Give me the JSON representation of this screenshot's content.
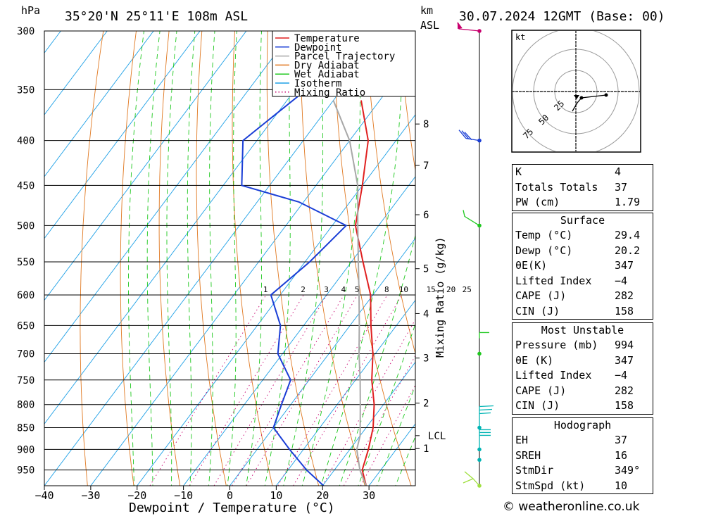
{
  "header": {
    "hpa_label": "hPa",
    "location": "35°20'N  25°11'E  108m  ASL",
    "km_label": "km",
    "asl_label": "ASL",
    "datetime": "30.07.2024  12GMT  (Base: 00)"
  },
  "chart_data": {
    "type": "line",
    "title": "35°20'N  25°11'E  108m  ASL",
    "xlabel": "Dewpoint / Temperature (°C)",
    "ylabel": "hPa",
    "right_axis_label": "Mixing Ratio (g/kg)",
    "x_ticks": [
      "−40",
      "−30",
      "−20",
      "−10",
      "0",
      "10",
      "20",
      "30"
    ],
    "x_tick_values": [
      -40,
      -30,
      -20,
      -10,
      0,
      10,
      20,
      30
    ],
    "pressure_levels": [
      300,
      350,
      400,
      450,
      500,
      550,
      600,
      650,
      700,
      750,
      800,
      850,
      900,
      950
    ],
    "pressure_labels": [
      "300",
      "350",
      "400",
      "450",
      "500",
      "550",
      "600",
      "650",
      "700",
      "750",
      "800",
      "850",
      "900",
      "950"
    ],
    "xlim": [
      -40,
      40
    ],
    "plim": [
      300,
      990
    ],
    "skew": "isotherms slope right (skew-T log-p)",
    "km_labels": [
      {
        "label": "8",
        "p": 383
      },
      {
        "label": "7",
        "p": 427
      },
      {
        "label": "6",
        "p": 486
      },
      {
        "label": "5",
        "p": 560
      },
      {
        "label": "4",
        "p": 630
      },
      {
        "label": "3",
        "p": 708
      },
      {
        "label": "2",
        "p": 797
      },
      {
        "label": "LCL",
        "p": 868
      },
      {
        "label": "1",
        "p": 898
      }
    ],
    "mixing_ratio_labels": [
      "1",
      "2",
      "3",
      "4",
      "5",
      "8",
      "10",
      "15",
      "20",
      "25"
    ],
    "mixing_ratio_values": [
      1,
      2,
      3,
      4,
      5,
      8,
      10,
      15,
      20,
      25
    ],
    "legend": [
      "Temperature",
      "Dewpoint",
      "Parcel Trajectory",
      "Dry Adiabat",
      "Wet Adiabat",
      "Isotherm",
      "Mixing Ratio"
    ],
    "legend_position": "top-right",
    "series": [
      {
        "name": "Temperature",
        "color": "#e02020",
        "p": [
          990,
          950,
          900,
          850,
          800,
          750,
          700,
          650,
          600,
          550,
          500,
          450,
          400,
          360
        ],
        "t": [
          29.4,
          26,
          24,
          21.5,
          18,
          13.5,
          9.5,
          4.5,
          -0.5,
          -7.5,
          -15,
          -20,
          -26,
          -34
        ]
      },
      {
        "name": "Dewpoint",
        "color": "#1a3ed6",
        "p": [
          990,
          950,
          900,
          850,
          800,
          750,
          700,
          650,
          600,
          550,
          500,
          470,
          450,
          400,
          345,
          300
        ],
        "t": [
          20.2,
          14,
          7,
          0,
          -2,
          -4,
          -11,
          -15,
          -22,
          -19,
          -17,
          -31,
          -46,
          -53,
          -47,
          -53
        ]
      },
      {
        "name": "Parcel Trajectory",
        "color": "#a8a8a8",
        "p": [
          990,
          950,
          900,
          868,
          800,
          750,
          700,
          650,
          600,
          550,
          500,
          450,
          400,
          360
        ],
        "t": [
          29.4,
          25.5,
          21.5,
          20,
          15,
          11,
          6.5,
          2,
          -3,
          -8.5,
          -14.5,
          -21,
          -30,
          -40
        ]
      }
    ],
    "hodograph": {
      "unit_label": "kt",
      "rings": [
        "25",
        "50",
        "75"
      ]
    },
    "indices": {
      "k_label": "K",
      "k": "4",
      "tt_label": "Totals Totals",
      "tt": "37",
      "pw_label": "PW (cm)",
      "pw": "1.79",
      "surface_title": "Surface",
      "sfc_temp_label": "Temp (°C)",
      "sfc_temp": "29.4",
      "sfc_dewp_label": "Dewp (°C)",
      "sfc_dewp": "20.2",
      "sfc_theta_label": "θE(K)",
      "sfc_theta": "347",
      "sfc_li_label": "Lifted Index",
      "sfc_li": "−4",
      "sfc_cape_label": "CAPE (J)",
      "sfc_cape": "282",
      "sfc_cin_label": "CIN (J)",
      "sfc_cin": "158",
      "mu_title": "Most Unstable",
      "mu_pres_label": "Pressure (mb)",
      "mu_pres": "994",
      "mu_theta_label": "θE (K)",
      "mu_theta": "347",
      "mu_li_label": "Lifted Index",
      "mu_li": "−4",
      "mu_cape_label": "CAPE (J)",
      "mu_cape": "282",
      "mu_cin_label": "CIN (J)",
      "mu_cin": "158",
      "hodo_title": "Hodograph",
      "eh_label": "EH",
      "eh": "37",
      "sreh_label": "SREH",
      "sreh": "16",
      "stmdir_label": "StmDir",
      "stmdir": "349°",
      "stmspd_label": "StmSpd (kt)",
      "stmspd": "10"
    },
    "wind_levels": [
      {
        "p": 300,
        "color": "#c8006e"
      },
      {
        "p": 400,
        "color": "#1a3ed6"
      },
      {
        "p": 500,
        "color": "#1ec81e"
      },
      {
        "p": 700,
        "color": "#1ec81e"
      },
      {
        "p": 850,
        "color": "#00b4b4"
      },
      {
        "p": 900,
        "color": "#00b4b4"
      },
      {
        "p": 925,
        "color": "#00b4b4"
      },
      {
        "p": 990,
        "color": "#a0e040"
      }
    ]
  },
  "footer": {
    "credit": "© weatheronline.co.uk"
  },
  "colors": {
    "temperature": "#e02020",
    "dewpoint": "#1a3ed6",
    "parcel": "#a8a8a8",
    "dry_adiabat": "#e07820",
    "wet_adiabat": "#1ec81e",
    "isotherm": "#1ea0e6",
    "mixing_ratio": "#c8006e"
  }
}
